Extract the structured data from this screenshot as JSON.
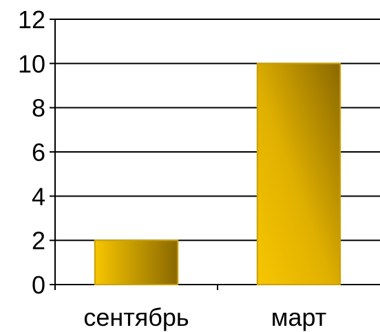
{
  "chart_data": {
    "type": "bar",
    "categories": [
      "сентябрь",
      "март"
    ],
    "values": [
      2,
      10
    ],
    "ylim": [
      0,
      12
    ],
    "yticks": [
      0,
      2,
      4,
      6,
      8,
      10,
      12
    ],
    "grid": true,
    "legend": "none",
    "bar_colors": {
      "light": "#f7c600",
      "dark": "#8a6800",
      "border": "#c9a000"
    }
  }
}
